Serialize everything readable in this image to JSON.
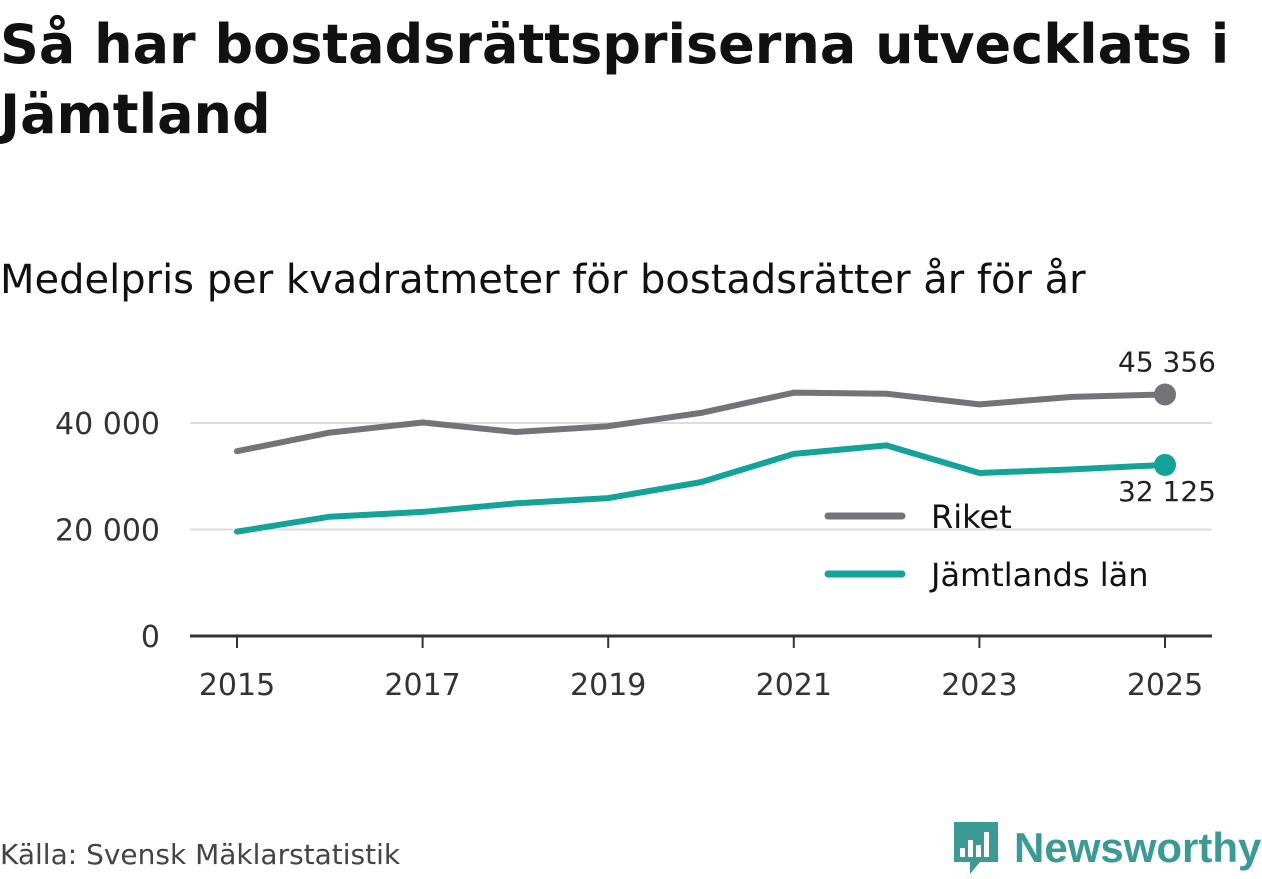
{
  "title": "Så har bostadsrättspriserna utvecklats i Jämtland",
  "subtitle": "Medelpris per kvadratmeter för bostadsrätter år för år",
  "source": "Källa: Svensk Mäklarstatistik",
  "brand": "Newsworthy",
  "colors": {
    "riket": "#747378",
    "jamtland": "#13a398",
    "grid": "#dddddd",
    "axis": "#333333",
    "brand": "#3a9b96"
  },
  "chart_data": {
    "type": "line",
    "title": "Så har bostadsrättspriserna utvecklats i Jämtland",
    "xlabel": "",
    "ylabel": "",
    "x": [
      2015,
      2016,
      2017,
      2018,
      2019,
      2020,
      2021,
      2022,
      2023,
      2024,
      2025
    ],
    "x_ticks": [
      "2015",
      "2017",
      "2019",
      "2021",
      "2023",
      "2025"
    ],
    "y_ticks": [
      "0",
      "20 000",
      "40 000"
    ],
    "y_tick_values": [
      0,
      20000,
      40000
    ],
    "ylim": [
      0,
      50000
    ],
    "xlim": [
      2015,
      2025
    ],
    "legend_position": "right",
    "series": [
      {
        "name": "Riket",
        "values": [
          34700,
          38200,
          40100,
          38300,
          39400,
          41900,
          45700,
          45500,
          43500,
          44900,
          45356
        ],
        "end_label": "45 356"
      },
      {
        "name": "Jämtlands län",
        "values": [
          19600,
          22400,
          23300,
          24900,
          25900,
          28900,
          34200,
          35800,
          30600,
          31300,
          32125
        ],
        "end_label": "32 125"
      }
    ]
  }
}
